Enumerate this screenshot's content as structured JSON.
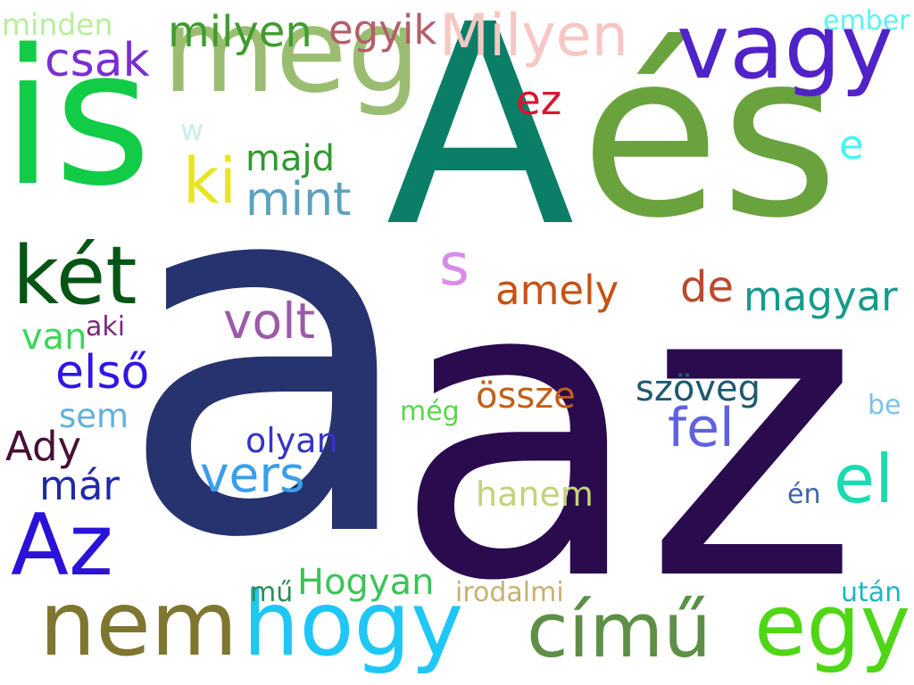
{
  "canvas": {
    "background": "#ffffff"
  },
  "words": [
    {
      "id": "a",
      "text": "a",
      "color": "#27336e"
    },
    {
      "id": "az",
      "text": "az",
      "color": "#2a0b4e"
    },
    {
      "id": "A",
      "text": "A",
      "color": "#0a7e66"
    },
    {
      "id": "es",
      "text": "és",
      "color": "#6aa33e"
    },
    {
      "id": "is",
      "text": "is",
      "color": "#12cc47"
    },
    {
      "id": "meg",
      "text": "meg",
      "color": "#9bbd72"
    },
    {
      "id": "vagy",
      "text": "vagy",
      "color": "#5022c8"
    },
    {
      "id": "nem",
      "text": "nem",
      "color": "#7f7630"
    },
    {
      "id": "hogy",
      "text": "hogy",
      "color": "#1ec7f5"
    },
    {
      "id": "cimu",
      "text": "című",
      "color": "#5e8f47"
    },
    {
      "id": "egy",
      "text": "egy",
      "color": "#4fd615"
    },
    {
      "id": "ket",
      "text": "két",
      "color": "#055515"
    },
    {
      "id": "Az",
      "text": "Az",
      "color": "#2a12d8"
    },
    {
      "id": "Milyen",
      "text": "Milyen",
      "color": "#f6c7c3"
    },
    {
      "id": "csak",
      "text": "csak",
      "color": "#7a2fcf"
    },
    {
      "id": "milyen",
      "text": "milyen",
      "color": "#3f9c2e"
    },
    {
      "id": "egyik",
      "text": "egyik",
      "color": "#b35e6a"
    },
    {
      "id": "minden",
      "text": "minden",
      "color": "#b9ee9c"
    },
    {
      "id": "ember",
      "text": "ember",
      "color": "#59f5ee"
    },
    {
      "id": "ki",
      "text": "ki",
      "color": "#e8e51e"
    },
    {
      "id": "majd",
      "text": "majd",
      "color": "#2e9a2e"
    },
    {
      "id": "mint",
      "text": "mint",
      "color": "#5ba2be"
    },
    {
      "id": "ez",
      "text": "ez",
      "color": "#dd1230"
    },
    {
      "id": "w",
      "text": "w",
      "color": "#c9ece8"
    },
    {
      "id": "e",
      "text": "e",
      "color": "#49f3f3"
    },
    {
      "id": "s",
      "text": "s",
      "color": "#d98be9"
    },
    {
      "id": "amely",
      "text": "amely",
      "color": "#c65214"
    },
    {
      "id": "de",
      "text": "de",
      "color": "#b94a2c"
    },
    {
      "id": "magyar",
      "text": "magyar",
      "color": "#169a8c"
    },
    {
      "id": "volt",
      "text": "volt",
      "color": "#9b5aa6"
    },
    {
      "id": "van",
      "text": "van",
      "color": "#3ad85a"
    },
    {
      "id": "aki",
      "text": "aki",
      "color": "#7a2a7c"
    },
    {
      "id": "elso",
      "text": "első",
      "color": "#2f16e8"
    },
    {
      "id": "sem",
      "text": "sem",
      "color": "#63b0e0"
    },
    {
      "id": "Ady",
      "text": "Ady",
      "color": "#471037"
    },
    {
      "id": "mar",
      "text": "már",
      "color": "#1f2aa7"
    },
    {
      "id": "vers",
      "text": "vers",
      "color": "#3b9ee8"
    },
    {
      "id": "olyan",
      "text": "olyan",
      "color": "#3434c9"
    },
    {
      "id": "meg2",
      "text": "még",
      "color": "#5ad64c"
    },
    {
      "id": "ossze",
      "text": "össze",
      "color": "#c25f18"
    },
    {
      "id": "szoveg",
      "text": "szöveg",
      "color": "#1d5a70"
    },
    {
      "id": "fel",
      "text": "fel",
      "color": "#5f62e0"
    },
    {
      "id": "be",
      "text": "be",
      "color": "#7bc2ec"
    },
    {
      "id": "el",
      "text": "el",
      "color": "#1bdbb0"
    },
    {
      "id": "hanem",
      "text": "hanem",
      "color": "#c3d27a"
    },
    {
      "id": "en",
      "text": "én",
      "color": "#3f66a8"
    },
    {
      "id": "mu",
      "text": "mű",
      "color": "#2d8c55"
    },
    {
      "id": "Hogyan",
      "text": "Hogyan",
      "color": "#3dc357"
    },
    {
      "id": "irodalmi",
      "text": "irodalmi",
      "color": "#c9b070"
    },
    {
      "id": "utan",
      "text": "után",
      "color": "#22b5c1"
    }
  ]
}
